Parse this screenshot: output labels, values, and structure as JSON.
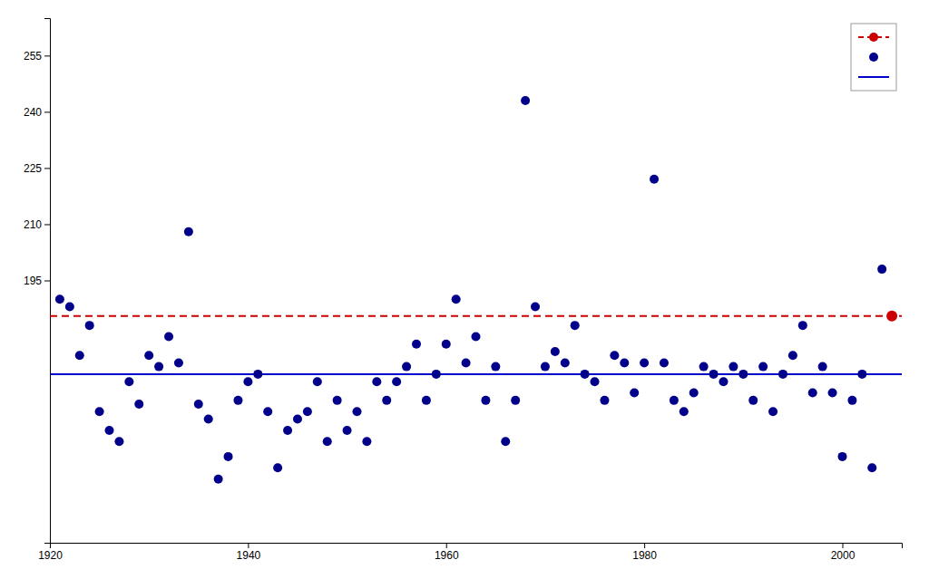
{
  "chart_data": {
    "type": "scatter",
    "xlim": [
      1920,
      2006
    ],
    "xticks": [
      1920,
      1940,
      1960,
      1980,
      2000
    ],
    "ylim": [
      125,
      265
    ],
    "yticks": [
      195,
      210,
      225,
      240,
      255
    ],
    "grid": false,
    "legend": "upper right",
    "series": [
      {
        "type": "hline",
        "color": "#cc0000",
        "line_style": "dashed",
        "marker": "circle",
        "x": [
          2005
        ],
        "values": [
          185.5
        ]
      },
      {
        "type": "scatter",
        "color": "#00008B",
        "marker": "circle",
        "x": [
          1921,
          1922,
          1923,
          1924,
          1925,
          1926,
          1927,
          1928,
          1929,
          1930,
          1931,
          1932,
          1933,
          1934,
          1935,
          1936,
          1937,
          1938,
          1939,
          1940,
          1941,
          1942,
          1943,
          1944,
          1945,
          1946,
          1947,
          1948,
          1949,
          1950,
          1951,
          1952,
          1953,
          1954,
          1955,
          1956,
          1957,
          1958,
          1959,
          1960,
          1961,
          1962,
          1963,
          1964,
          1965,
          1966,
          1967,
          1968,
          1969,
          1970,
          1971,
          1972,
          1973,
          1974,
          1975,
          1976,
          1977,
          1978,
          1979,
          1980,
          1981,
          1982,
          1983,
          1984,
          1985,
          1986,
          1987,
          1988,
          1989,
          1990,
          1991,
          1992,
          1993,
          1994,
          1995,
          1996,
          1997,
          1998,
          1999,
          2000,
          2001,
          2002,
          2003,
          2004
        ],
        "values": [
          190,
          188,
          175,
          183,
          160,
          155,
          152,
          168,
          162,
          175,
          172,
          180,
          173,
          208,
          162,
          158,
          142,
          148,
          163,
          168,
          170,
          160,
          145,
          155,
          158,
          160,
          168,
          152,
          163,
          155,
          160,
          152,
          168,
          163,
          168,
          172,
          178,
          163,
          170,
          178,
          190,
          173,
          180,
          163,
          172,
          152,
          163,
          243,
          188,
          172,
          176,
          173,
          183,
          170,
          168,
          163,
          175,
          173,
          165,
          173,
          222,
          173,
          163,
          160,
          165,
          172,
          170,
          168,
          172,
          170,
          163,
          172,
          160,
          170,
          175,
          183,
          165,
          172,
          165,
          148,
          163,
          170,
          145,
          198
        ]
      },
      {
        "type": "hline",
        "color": "#0000cc",
        "line_style": "solid",
        "values": [
          170.0
        ]
      }
    ]
  }
}
